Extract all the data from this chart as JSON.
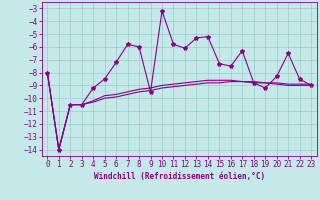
{
  "xlabel": "Windchill (Refroidissement éolien,°C)",
  "x": [
    0,
    1,
    2,
    3,
    4,
    5,
    6,
    7,
    8,
    9,
    10,
    11,
    12,
    13,
    14,
    15,
    16,
    17,
    18,
    19,
    20,
    21,
    22,
    23
  ],
  "line1_y": [
    -8.0,
    -14.0,
    -10.5,
    -10.5,
    -9.2,
    -8.5,
    -7.2,
    -5.8,
    -6.0,
    -9.5,
    -3.2,
    -5.8,
    -6.1,
    -5.3,
    -5.2,
    -7.3,
    -7.5,
    -6.3,
    -8.8,
    -9.2,
    -8.3,
    -6.5,
    -8.5,
    -9.0
  ],
  "line2_y": [
    -8.0,
    -14.0,
    -10.5,
    -10.5,
    -10.2,
    -9.8,
    -9.7,
    -9.5,
    -9.3,
    -9.2,
    -9.0,
    -8.9,
    -8.8,
    -8.7,
    -8.6,
    -8.6,
    -8.6,
    -8.7,
    -8.8,
    -8.8,
    -8.9,
    -9.0,
    -9.0,
    -9.0
  ],
  "line3_y": [
    -8.0,
    -14.0,
    -10.5,
    -10.5,
    -10.3,
    -10.0,
    -9.9,
    -9.7,
    -9.5,
    -9.4,
    -9.2,
    -9.1,
    -9.0,
    -8.9,
    -8.8,
    -8.8,
    -8.7,
    -8.7,
    -8.7,
    -8.8,
    -8.8,
    -8.9,
    -8.9,
    -8.9
  ],
  "bg_color": "#c5e8e8",
  "line_color": "#880088",
  "grid_color": "#99cccc",
  "ylim": [
    -14.5,
    -2.5
  ],
  "xlim": [
    -0.5,
    23.5
  ],
  "yticks": [
    -14,
    -13,
    -12,
    -11,
    -10,
    -9,
    -8,
    -7,
    -6,
    -5,
    -4,
    -3
  ],
  "xticks": [
    0,
    1,
    2,
    3,
    4,
    5,
    6,
    7,
    8,
    9,
    10,
    11,
    12,
    13,
    14,
    15,
    16,
    17,
    18,
    19,
    20,
    21,
    22,
    23
  ],
  "marker": "*",
  "marker_size": 3,
  "line_width": 0.8,
  "tick_fontsize": 5.5,
  "xlabel_fontsize": 5.5
}
